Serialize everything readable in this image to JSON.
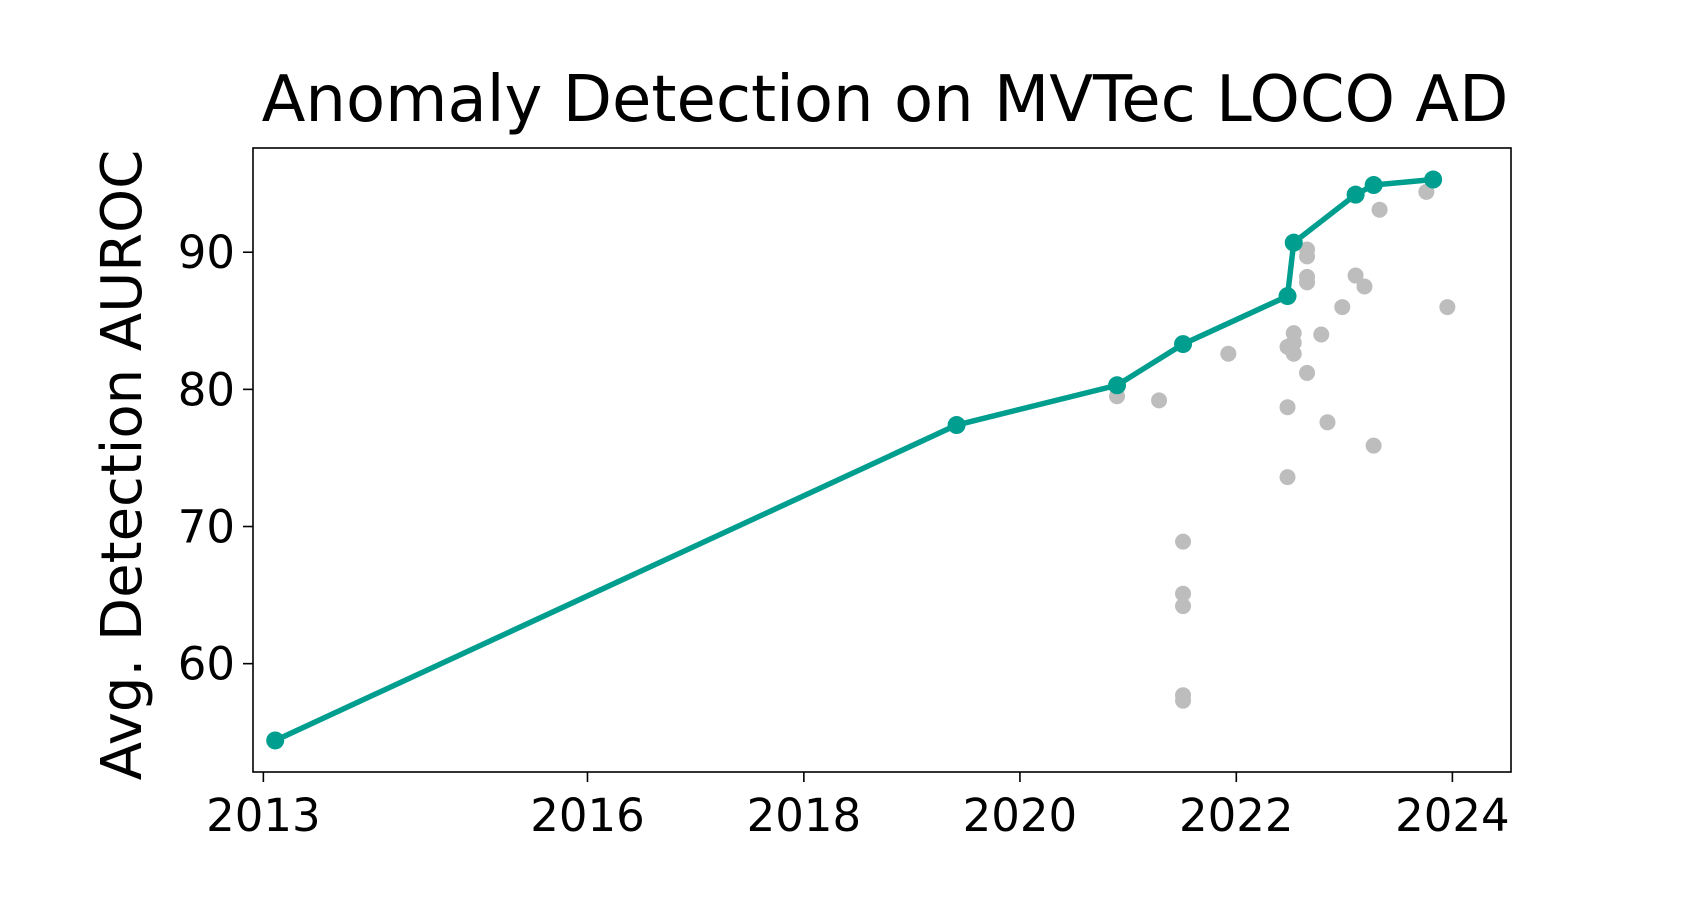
{
  "chart_data": {
    "type": "scatter",
    "title": "Anomaly Detection on MVTec LOCO AD",
    "xlabel": "",
    "ylabel": "Avg. Detection AUROC",
    "x_axis": "date",
    "xlim": [
      "2012-11-27",
      "2024-07-17"
    ],
    "ylim": [
      52.1,
      97.6
    ],
    "x_ticks": [
      {
        "value": "2013-01-01",
        "label": "2013"
      },
      {
        "value": "2016-01-01",
        "label": "2016"
      },
      {
        "value": "2018-01-01",
        "label": "2018"
      },
      {
        "value": "2020-01-01",
        "label": "2020"
      },
      {
        "value": "2022-01-01",
        "label": "2022"
      },
      {
        "value": "2024-01-01",
        "label": "2024"
      }
    ],
    "y_ticks": [
      60,
      70,
      80,
      90
    ],
    "grid": false,
    "colors": {
      "sota": "#009e8e",
      "other": "#bdbdbd"
    },
    "series": [
      {
        "style": "line-markers",
        "color": "#009e8e",
        "points": [
          {
            "x": "2013-02-10",
            "y": 54.4
          },
          {
            "x": "2019-06-01",
            "y": 77.4
          },
          {
            "x": "2020-11-24",
            "y": 80.3
          },
          {
            "x": "2021-07-05",
            "y": 83.3
          },
          {
            "x": "2022-06-23",
            "y": 86.8
          },
          {
            "x": "2022-07-14",
            "y": 90.7
          },
          {
            "x": "2023-02-08",
            "y": 94.2
          },
          {
            "x": "2023-04-10",
            "y": 94.9
          },
          {
            "x": "2023-10-28",
            "y": 95.3
          }
        ]
      },
      {
        "style": "markers",
        "color": "#bdbdbd",
        "points": [
          {
            "x": "2020-11-24",
            "y": 79.5
          },
          {
            "x": "2021-04-15",
            "y": 79.2
          },
          {
            "x": "2021-07-05",
            "y": 68.9
          },
          {
            "x": "2021-07-05",
            "y": 65.1
          },
          {
            "x": "2021-07-05",
            "y": 64.2
          },
          {
            "x": "2021-07-05",
            "y": 57.7
          },
          {
            "x": "2021-07-05",
            "y": 57.3
          },
          {
            "x": "2021-12-05",
            "y": 82.6
          },
          {
            "x": "2022-06-23",
            "y": 83.1
          },
          {
            "x": "2022-06-23",
            "y": 78.7
          },
          {
            "x": "2022-06-23",
            "y": 73.6
          },
          {
            "x": "2022-07-14",
            "y": 84.1
          },
          {
            "x": "2022-07-14",
            "y": 83.4
          },
          {
            "x": "2022-07-14",
            "y": 82.6
          },
          {
            "x": "2022-08-28",
            "y": 90.2
          },
          {
            "x": "2022-08-28",
            "y": 89.7
          },
          {
            "x": "2022-08-28",
            "y": 88.2
          },
          {
            "x": "2022-08-28",
            "y": 87.8
          },
          {
            "x": "2022-08-28",
            "y": 81.2
          },
          {
            "x": "2022-10-15",
            "y": 84.0
          },
          {
            "x": "2022-11-05",
            "y": 77.6
          },
          {
            "x": "2022-12-25",
            "y": 86.0
          },
          {
            "x": "2023-02-08",
            "y": 88.3
          },
          {
            "x": "2023-03-10",
            "y": 87.5
          },
          {
            "x": "2023-04-10",
            "y": 75.9
          },
          {
            "x": "2023-04-30",
            "y": 93.1
          },
          {
            "x": "2023-10-05",
            "y": 94.4
          },
          {
            "x": "2023-12-15",
            "y": 86.0
          }
        ]
      }
    ]
  }
}
